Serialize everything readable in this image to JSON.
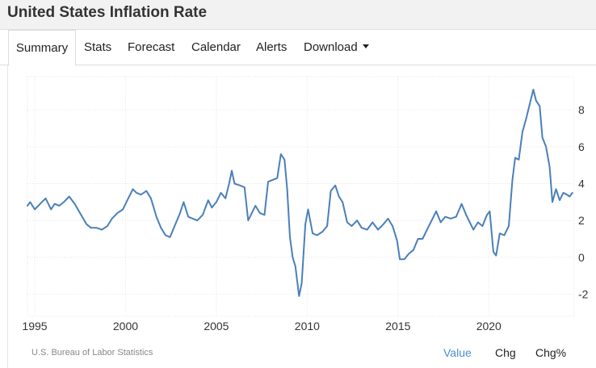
{
  "header": {
    "title": "United States Inflation Rate"
  },
  "tabs": [
    {
      "label": "Summary"
    },
    {
      "label": "Stats"
    },
    {
      "label": "Forecast"
    },
    {
      "label": "Calendar"
    },
    {
      "label": "Alerts"
    },
    {
      "label": "Download"
    }
  ],
  "footer": {
    "source": "U.S. Bureau of Labor Statistics",
    "views": [
      "Value",
      "Chg",
      "Chg%"
    ]
  },
  "colors": {
    "line": "#4a7fbb",
    "active_view": "#4a8ed0",
    "grid": "#e6e6e6"
  },
  "chart_data": {
    "type": "line",
    "title": "",
    "xlabel": "",
    "ylabel": "",
    "x_ticks": [
      "1995",
      "2000",
      "2005",
      "2010",
      "2015",
      "2020"
    ],
    "y_ticks": [
      "-2",
      "0",
      "2",
      "4",
      "6",
      "8"
    ],
    "xlim": [
      1994.6,
      2024.7
    ],
    "ylim": [
      -3.2,
      9.8
    ],
    "grid": true,
    "legend": "none",
    "series": [
      {
        "x": [
          1994.6,
          1994.75,
          1995.0,
          1995.3,
          1995.6,
          1995.9,
          1996.1,
          1996.35,
          1996.6,
          1996.9,
          1997.2,
          1997.55,
          1997.85,
          1998.1,
          1998.4,
          1998.7,
          1999.0,
          1999.25,
          1999.55,
          1999.85,
          2000.15,
          2000.4,
          2000.6,
          2000.85,
          2001.15,
          2001.4,
          2001.7,
          2001.95,
          2002.2,
          2002.45,
          2002.7,
          2003.0,
          2003.2,
          2003.45,
          2003.7,
          2003.95,
          2004.25,
          2004.55,
          2004.75,
          2005.0,
          2005.25,
          2005.5,
          2005.7,
          2005.85,
          2006.0,
          2006.3,
          2006.55,
          2006.75,
          2006.95,
          2007.15,
          2007.4,
          2007.65,
          2007.85,
          2008.1,
          2008.35,
          2008.55,
          2008.75,
          2008.9,
          2009.05,
          2009.2,
          2009.35,
          2009.55,
          2009.7,
          2009.9,
          2010.05,
          2010.3,
          2010.55,
          2010.85,
          2011.1,
          2011.3,
          2011.55,
          2011.75,
          2011.95,
          2012.2,
          2012.45,
          2012.75,
          2013.0,
          2013.3,
          2013.6,
          2013.9,
          2014.2,
          2014.45,
          2014.7,
          2014.95,
          2015.1,
          2015.35,
          2015.6,
          2015.85,
          2016.1,
          2016.35,
          2016.6,
          2016.9,
          2017.1,
          2017.35,
          2017.6,
          2017.9,
          2018.2,
          2018.5,
          2018.75,
          2018.95,
          2019.15,
          2019.4,
          2019.65,
          2019.9,
          2020.05,
          2020.25,
          2020.4,
          2020.6,
          2020.85,
          2021.1,
          2021.3,
          2021.45,
          2021.65,
          2021.85,
          2022.05,
          2022.3,
          2022.45,
          2022.6,
          2022.8,
          2022.95,
          2023.15,
          2023.35,
          2023.5,
          2023.7,
          2023.9,
          2024.1,
          2024.3,
          2024.45,
          2024.6
        ],
        "y": [
          2.8,
          3.0,
          2.6,
          2.9,
          3.2,
          2.6,
          2.9,
          2.8,
          3.0,
          3.3,
          2.9,
          2.3,
          1.8,
          1.6,
          1.6,
          1.5,
          1.7,
          2.1,
          2.4,
          2.6,
          3.2,
          3.7,
          3.5,
          3.4,
          3.6,
          3.2,
          2.2,
          1.6,
          1.2,
          1.1,
          1.7,
          2.4,
          3.0,
          2.2,
          2.1,
          2.0,
          2.3,
          3.1,
          2.7,
          3.0,
          3.5,
          3.2,
          4.0,
          4.7,
          4.0,
          3.9,
          3.8,
          2.0,
          2.4,
          2.8,
          2.4,
          2.3,
          4.1,
          4.2,
          4.3,
          5.6,
          5.3,
          3.7,
          1.1,
          0.0,
          -0.5,
          -2.1,
          -1.4,
          1.8,
          2.6,
          1.3,
          1.2,
          1.4,
          1.7,
          3.6,
          3.9,
          3.3,
          3.0,
          1.9,
          1.7,
          2.0,
          1.6,
          1.5,
          1.9,
          1.5,
          1.8,
          2.1,
          1.7,
          0.9,
          -0.1,
          -0.1,
          0.2,
          0.4,
          1.0,
          1.0,
          1.5,
          2.1,
          2.5,
          1.9,
          2.2,
          2.1,
          2.2,
          2.9,
          2.3,
          1.9,
          1.5,
          1.9,
          1.7,
          2.3,
          2.5,
          0.3,
          0.1,
          1.3,
          1.2,
          1.7,
          4.2,
          5.4,
          5.3,
          6.8,
          7.5,
          8.5,
          9.1,
          8.5,
          8.2,
          6.5,
          6.0,
          4.9,
          3.0,
          3.7,
          3.1,
          3.5,
          3.4,
          3.3,
          3.5
        ]
      }
    ]
  }
}
